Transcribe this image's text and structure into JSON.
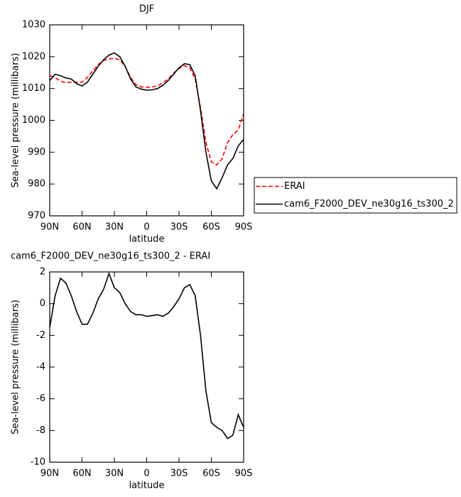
{
  "chart_data": [
    {
      "type": "line",
      "title": "DJF",
      "xlabel": "latitude",
      "ylabel": "Sea-level pressure (millibars)",
      "x": [
        90,
        85,
        80,
        75,
        70,
        65,
        60,
        55,
        50,
        45,
        40,
        35,
        30,
        25,
        20,
        15,
        10,
        5,
        0,
        -5,
        -10,
        -15,
        -20,
        -25,
        -30,
        -35,
        -40,
        -45,
        -50,
        -55,
        -60,
        -65,
        -70,
        -75,
        -80,
        -85,
        -90
      ],
      "xlim": [
        90,
        -90
      ],
      "xticks": [
        {
          "value": 90,
          "label": "90N"
        },
        {
          "value": 60,
          "label": "60N"
        },
        {
          "value": 30,
          "label": "30N"
        },
        0,
        {
          "value": -30,
          "label": "30S"
        },
        {
          "value": -60,
          "label": "60S"
        },
        {
          "value": -90,
          "label": "90S"
        }
      ],
      "ylim": [
        970,
        1030
      ],
      "yticks": [
        970,
        980,
        990,
        1000,
        1010,
        1020,
        1030
      ],
      "series": [
        {
          "name": "ERAI",
          "color": "#ff0000",
          "dash": true,
          "values": [
            1014,
            1013.5,
            1012.3,
            1011.8,
            1012,
            1012,
            1012,
            1013.5,
            1015.5,
            1017.5,
            1018.8,
            1019.3,
            1019.5,
            1019,
            1017,
            1013.5,
            1011.2,
            1010.5,
            1010.4,
            1010.5,
            1010.8,
            1011.8,
            1013,
            1014.8,
            1016.3,
            1017.2,
            1016.5,
            1013,
            1004,
            993,
            987,
            986,
            988,
            993,
            995.5,
            997,
            1002
          ]
        },
        {
          "name": "cam6_F2000_DEV_ne30g16_ts300_2",
          "color": "#000000",
          "dash": false,
          "values": [
            1012.5,
            1014.5,
            1014,
            1013.3,
            1013,
            1011.5,
            1010.8,
            1012,
            1014.5,
            1017,
            1019,
            1020.5,
            1021.2,
            1020,
            1017,
            1013,
            1010.5,
            1009.8,
            1009.5,
            1009.6,
            1010,
            1011,
            1012.5,
            1014.5,
            1016.5,
            1017.8,
            1017.5,
            1014,
            1003,
            990,
            981,
            978.5,
            982,
            986,
            988,
            992,
            994
          ]
        }
      ]
    },
    {
      "type": "line",
      "title": "cam6_F2000_DEV_ne30g16_ts300_2 - ERAI",
      "xlabel": "latitude",
      "ylabel": "Sea-level pressure (millibars)",
      "x": [
        90,
        85,
        80,
        75,
        70,
        65,
        60,
        55,
        50,
        45,
        40,
        35,
        30,
        25,
        20,
        15,
        10,
        5,
        0,
        -5,
        -10,
        -15,
        -20,
        -25,
        -30,
        -35,
        -40,
        -45,
        -50,
        -55,
        -60,
        -65,
        -70,
        -75,
        -80,
        -85,
        -90
      ],
      "xlim": [
        90,
        -90
      ],
      "xticks": [
        {
          "value": 90,
          "label": "90N"
        },
        {
          "value": 60,
          "label": "60N"
        },
        {
          "value": 30,
          "label": "30N"
        },
        0,
        {
          "value": -30,
          "label": "30S"
        },
        {
          "value": -60,
          "label": "60S"
        },
        {
          "value": -90,
          "label": "90S"
        }
      ],
      "ylim": [
        -10,
        2
      ],
      "yticks": [
        -10,
        -8,
        -6,
        -4,
        -2,
        0,
        2
      ],
      "series": [
        {
          "color": "#000000",
          "dash": false,
          "values": [
            -1.5,
            0.5,
            1.6,
            1.3,
            0.5,
            -0.5,
            -1.3,
            -1.3,
            -0.6,
            0.3,
            0.9,
            1.9,
            1.0,
            0.7,
            0.0,
            -0.5,
            -0.7,
            -0.7,
            -0.8,
            -0.75,
            -0.7,
            -0.8,
            -0.6,
            -0.2,
            0.3,
            1.0,
            1.2,
            0.5,
            -2,
            -5.5,
            -7.5,
            -7.8,
            -8.0,
            -8.5,
            -8.3,
            -7.0,
            -7.8
          ]
        }
      ]
    }
  ]
}
